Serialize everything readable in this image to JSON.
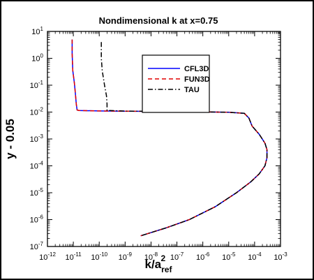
{
  "chart_data": {
    "type": "line",
    "title": "Nondimensional k at x=0.75",
    "xlabel": {
      "base": "k/a",
      "sub": "ref",
      "sup": "2"
    },
    "ylabel": "y - 0.05",
    "x_scale": "log",
    "y_scale": "log",
    "xlim": [
      1e-12,
      0.001
    ],
    "ylim": [
      1e-07,
      10
    ],
    "x_ticks": [
      {
        "b": "10",
        "e": "-12"
      },
      {
        "b": "10",
        "e": "-11"
      },
      {
        "b": "10",
        "e": "-10"
      },
      {
        "b": "10",
        "e": "-9"
      },
      {
        "b": "10",
        "e": "-8"
      },
      {
        "b": "10",
        "e": "-7"
      },
      {
        "b": "10",
        "e": "-6"
      },
      {
        "b": "10",
        "e": "-5"
      },
      {
        "b": "10",
        "e": "-4"
      },
      {
        "b": "10",
        "e": "-3"
      }
    ],
    "y_ticks": [
      {
        "b": "10",
        "e": "-7"
      },
      {
        "b": "10",
        "e": "-6"
      },
      {
        "b": "10",
        "e": "-5"
      },
      {
        "b": "10",
        "e": "-4"
      },
      {
        "b": "10",
        "e": "-3"
      },
      {
        "b": "10",
        "e": "-2"
      },
      {
        "b": "10",
        "e": "-1"
      },
      {
        "b": "10",
        "e": "0"
      },
      {
        "b": "10",
        "e": "1"
      }
    ],
    "grid": false,
    "legend_position": "top-right",
    "series": [
      {
        "name": "CFL3D",
        "color": "#0000ff",
        "dash": "solid",
        "points": [
          [
            9e-12,
            5.0
          ],
          [
            9e-12,
            1.5
          ],
          [
            9.5e-12,
            0.35
          ],
          [
            1.1e-11,
            0.12
          ],
          [
            1.2e-11,
            0.05
          ],
          [
            1.3e-11,
            0.02
          ],
          [
            1.4e-11,
            0.012
          ],
          [
            1.6e-11,
            0.0115
          ],
          [
            1e-10,
            0.011
          ],
          [
            1e-09,
            0.0108
          ],
          [
            1e-08,
            0.0106
          ],
          [
            1e-07,
            0.0104
          ],
          [
            1e-06,
            0.0102
          ],
          [
            1e-05,
            0.0098
          ],
          [
            4e-05,
            0.009
          ],
          [
            6e-05,
            0.006
          ],
          [
            8e-05,
            0.003
          ],
          [
            0.00015,
            0.0015
          ],
          [
            0.00025,
            0.0007
          ],
          [
            0.0003,
            0.0004
          ],
          [
            0.0003,
            0.0002
          ],
          [
            0.00025,
            0.0001
          ],
          [
            0.00015,
            5e-05
          ],
          [
            7e-05,
            2.5e-05
          ],
          [
            2e-05,
            1e-05
          ],
          [
            3e-06,
            3e-06
          ],
          [
            3e-07,
            1e-06
          ],
          [
            4e-08,
            5e-07
          ],
          [
            4e-09,
            2.5e-07
          ]
        ]
      },
      {
        "name": "FUN3D",
        "color": "#e00000",
        "dash": "dashed",
        "points": [
          [
            9e-12,
            5.0
          ],
          [
            9e-12,
            1.5
          ],
          [
            9.5e-12,
            0.35
          ],
          [
            1.1e-11,
            0.12
          ],
          [
            1.2e-11,
            0.05
          ],
          [
            1.3e-11,
            0.02
          ],
          [
            1.4e-11,
            0.012
          ],
          [
            1.6e-11,
            0.0115
          ],
          [
            1e-10,
            0.011
          ],
          [
            1e-09,
            0.0108
          ],
          [
            1e-08,
            0.0106
          ],
          [
            1e-07,
            0.0104
          ],
          [
            1e-06,
            0.0102
          ],
          [
            1e-05,
            0.0098
          ],
          [
            4e-05,
            0.009
          ],
          [
            6e-05,
            0.006
          ],
          [
            8e-05,
            0.003
          ],
          [
            0.00015,
            0.0015
          ],
          [
            0.00025,
            0.0007
          ],
          [
            0.0003,
            0.0004
          ],
          [
            0.0003,
            0.0002
          ],
          [
            0.00025,
            0.0001
          ],
          [
            0.00015,
            5e-05
          ],
          [
            7e-05,
            2.5e-05
          ],
          [
            2e-05,
            1e-05
          ],
          [
            3e-06,
            3e-06
          ],
          [
            3e-07,
            1e-06
          ],
          [
            4e-08,
            5e-07
          ],
          [
            4e-09,
            2.5e-07
          ]
        ]
      },
      {
        "name": "TAU",
        "color": "#000000",
        "dash": "dashdot",
        "points": [
          [
            1.2e-10,
            4.0
          ],
          [
            1.2e-10,
            1.0
          ],
          [
            1.3e-10,
            0.35
          ],
          [
            1.6e-10,
            0.1
          ],
          [
            1.9e-10,
            0.04
          ],
          [
            2e-10,
            0.02
          ],
          [
            2e-10,
            0.0115
          ],
          [
            1e-09,
            0.0109
          ],
          [
            1e-08,
            0.0107
          ],
          [
            1e-07,
            0.0104
          ],
          [
            1e-06,
            0.0102
          ],
          [
            1e-05,
            0.0098
          ],
          [
            4e-05,
            0.009
          ],
          [
            6e-05,
            0.006
          ],
          [
            8e-05,
            0.003
          ],
          [
            0.00015,
            0.0015
          ],
          [
            0.00025,
            0.0007
          ],
          [
            0.0003,
            0.0004
          ],
          [
            0.0003,
            0.0002
          ],
          [
            0.00025,
            0.0001
          ],
          [
            0.00015,
            5e-05
          ],
          [
            7e-05,
            2.5e-05
          ],
          [
            2e-05,
            1e-05
          ],
          [
            3e-06,
            3e-06
          ],
          [
            3e-07,
            1e-06
          ],
          [
            4e-08,
            5e-07
          ],
          [
            4e-09,
            2.5e-07
          ]
        ]
      }
    ]
  }
}
